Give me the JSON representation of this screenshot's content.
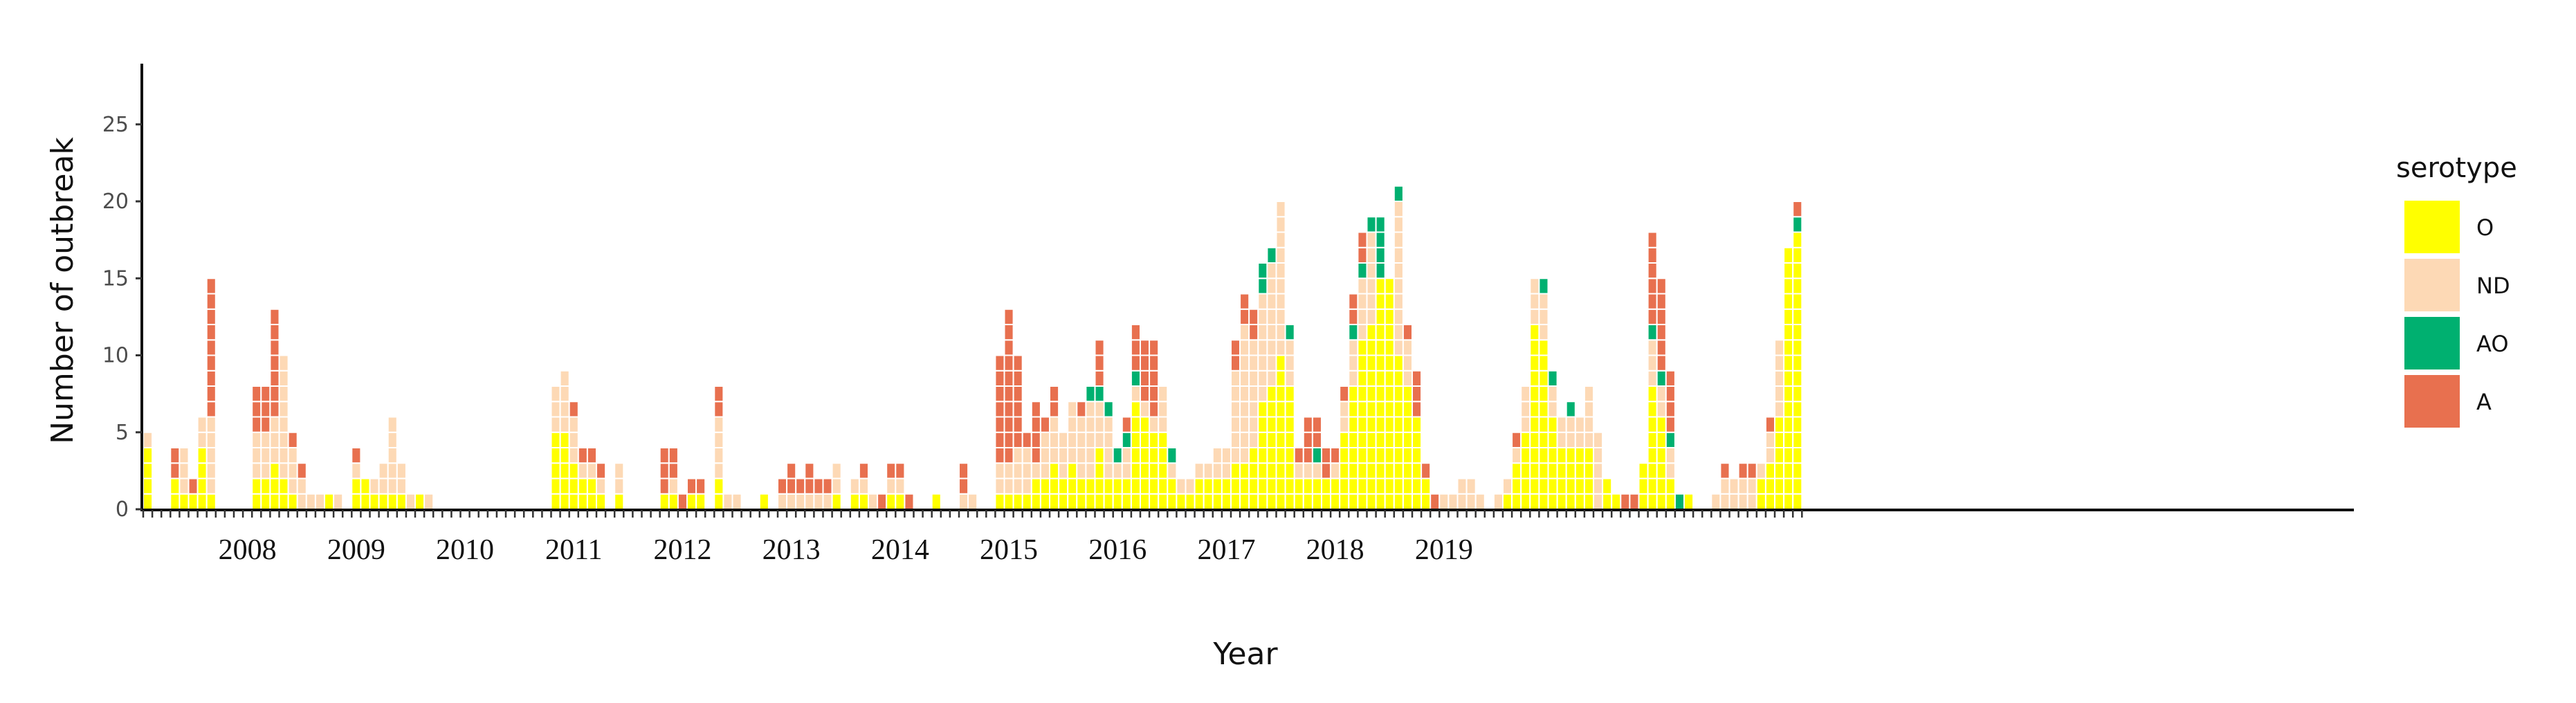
{
  "chart_data": {
    "type": "bar",
    "subtype": "stacked-waffle",
    "title": "",
    "xlabel": "Year",
    "ylabel": "Number of outbreak",
    "ylim": [
      0,
      29
    ],
    "yticks": [
      0,
      5,
      10,
      15,
      20,
      25
    ],
    "year_labels": [
      "2008",
      "2009",
      "2010",
      "2011",
      "2012",
      "2013",
      "2014",
      "2015",
      "2016",
      "2017",
      "2018",
      "2019"
    ],
    "x_start": "2007-08",
    "x_end": "2019-06",
    "grid": false,
    "legend": {
      "title": "serotype",
      "position": "right",
      "items": [
        {
          "key": "O",
          "label": "O",
          "color": "#FFFF00"
        },
        {
          "key": "ND",
          "label": "ND",
          "color": "#FDD9B5"
        },
        {
          "key": "AO",
          "label": "AO",
          "color": "#00B070"
        },
        {
          "key": "A",
          "label": "A",
          "color": "#E8704F"
        }
      ]
    },
    "stack_order": [
      "O",
      "ND",
      "AO",
      "A"
    ],
    "series": [
      {
        "name": "O",
        "values": [
          4,
          0,
          0,
          2,
          1,
          1,
          4,
          1,
          0,
          0,
          0,
          0,
          2,
          2,
          3,
          2,
          1,
          0,
          0,
          0,
          1,
          0,
          0,
          2,
          2,
          1,
          1,
          1,
          1,
          0,
          1,
          0,
          0,
          0,
          0,
          0,
          0,
          0,
          0,
          0,
          0,
          0,
          0,
          0,
          0,
          5,
          5,
          3,
          2,
          2,
          1,
          0,
          1,
          0,
          0,
          0,
          0,
          1,
          1,
          0,
          1,
          1,
          0,
          2,
          0,
          0,
          0,
          0,
          1,
          0,
          0,
          0,
          0,
          0,
          0,
          0,
          1,
          0,
          1,
          1,
          0,
          0,
          1,
          1,
          0,
          0,
          0,
          1,
          0,
          0,
          0,
          0,
          0,
          0,
          1,
          1,
          1,
          1,
          2,
          2,
          3,
          2,
          3,
          2,
          2,
          4,
          2,
          2,
          2,
          7,
          6,
          5,
          5,
          2,
          1,
          1,
          2,
          2,
          2,
          2,
          3,
          3,
          4,
          7,
          8,
          10,
          8,
          2,
          2,
          2,
          2,
          2,
          5,
          8,
          11,
          12,
          15,
          15,
          10,
          8,
          6,
          2,
          0,
          0,
          0,
          0,
          0,
          0,
          0,
          0,
          1,
          3,
          5,
          12,
          11,
          6,
          4,
          4,
          4,
          4,
          0,
          2,
          1,
          0,
          0,
          3,
          8,
          6,
          2,
          0,
          1,
          0,
          0,
          0,
          0,
          0,
          0,
          0,
          2,
          3,
          6,
          17,
          18
        ]
      },
      {
        "name": "ND",
        "values": [
          1,
          0,
          0,
          0,
          3,
          0,
          2,
          5,
          0,
          0,
          0,
          0,
          3,
          3,
          3,
          8,
          3,
          2,
          1,
          1,
          0,
          1,
          0,
          1,
          0,
          1,
          2,
          5,
          2,
          1,
          0,
          1,
          0,
          0,
          0,
          0,
          0,
          0,
          0,
          0,
          0,
          0,
          0,
          0,
          0,
          3,
          4,
          3,
          1,
          1,
          1,
          0,
          2,
          0,
          0,
          0,
          0,
          0,
          1,
          0,
          0,
          0,
          0,
          4,
          1,
          1,
          0,
          0,
          0,
          0,
          1,
          1,
          1,
          1,
          1,
          1,
          2,
          0,
          1,
          1,
          1,
          0,
          1,
          1,
          0,
          0,
          0,
          0,
          0,
          0,
          1,
          1,
          0,
          0,
          2,
          2,
          3,
          3,
          1,
          3,
          3,
          3,
          4,
          4,
          5,
          3,
          4,
          1,
          2,
          1,
          1,
          1,
          3,
          1,
          1,
          1,
          1,
          1,
          2,
          2,
          6,
          9,
          7,
          7,
          8,
          10,
          3,
          1,
          1,
          1,
          0,
          1,
          2,
          3,
          4,
          6,
          0,
          0,
          10,
          3,
          0,
          0,
          0,
          1,
          1,
          2,
          2,
          1,
          0,
          1,
          1,
          1,
          3,
          3,
          3,
          2,
          2,
          2,
          2,
          4,
          5,
          0,
          0,
          0,
          0,
          0,
          3,
          2,
          2,
          0,
          0,
          0,
          0,
          1,
          2,
          2,
          2,
          2,
          1,
          2,
          5,
          0,
          0
        ]
      },
      {
        "name": "AO",
        "values": [
          0,
          0,
          0,
          0,
          0,
          0,
          0,
          0,
          0,
          0,
          0,
          0,
          0,
          0,
          0,
          0,
          0,
          0,
          0,
          0,
          0,
          0,
          0,
          0,
          0,
          0,
          0,
          0,
          0,
          0,
          0,
          0,
          0,
          0,
          0,
          0,
          0,
          0,
          0,
          0,
          0,
          0,
          0,
          0,
          0,
          0,
          0,
          0,
          0,
          0,
          0,
          0,
          0,
          0,
          0,
          0,
          0,
          0,
          0,
          0,
          0,
          0,
          0,
          0,
          0,
          0,
          0,
          0,
          0,
          0,
          0,
          0,
          0,
          0,
          0,
          0,
          0,
          0,
          0,
          0,
          0,
          0,
          0,
          0,
          0,
          0,
          0,
          0,
          0,
          0,
          0,
          0,
          0,
          0,
          0,
          0,
          0,
          0,
          0,
          0,
          0,
          0,
          0,
          0,
          1,
          1,
          1,
          1,
          1,
          1,
          0,
          0,
          0,
          1,
          0,
          0,
          0,
          0,
          0,
          0,
          0,
          0,
          0,
          2,
          1,
          0,
          1,
          0,
          0,
          1,
          0,
          0,
          0,
          1,
          1,
          1,
          4,
          0,
          1,
          0,
          0,
          0,
          0,
          0,
          0,
          0,
          0,
          0,
          0,
          0,
          0,
          0,
          0,
          0,
          1,
          1,
          0,
          1,
          0,
          0,
          0,
          0,
          0,
          0,
          0,
          0,
          1,
          1,
          1,
          1,
          0,
          0,
          0,
          0,
          0,
          0,
          0,
          0,
          0,
          0,
          0,
          0,
          1
        ]
      },
      {
        "name": "A",
        "values": [
          0,
          0,
          0,
          2,
          0,
          1,
          0,
          9,
          0,
          0,
          0,
          0,
          3,
          3,
          7,
          0,
          1,
          1,
          0,
          0,
          0,
          0,
          0,
          1,
          0,
          0,
          0,
          0,
          0,
          0,
          0,
          0,
          0,
          0,
          0,
          0,
          0,
          0,
          0,
          0,
          0,
          0,
          0,
          0,
          0,
          0,
          0,
          1,
          1,
          1,
          1,
          0,
          0,
          0,
          0,
          0,
          0,
          3,
          2,
          1,
          1,
          1,
          0,
          2,
          0,
          0,
          0,
          0,
          0,
          0,
          1,
          2,
          1,
          2,
          1,
          1,
          0,
          0,
          0,
          1,
          0,
          1,
          1,
          1,
          1,
          0,
          0,
          0,
          0,
          0,
          2,
          0,
          0,
          0,
          7,
          10,
          6,
          1,
          4,
          1,
          2,
          0,
          0,
          1,
          0,
          3,
          0,
          0,
          1,
          3,
          4,
          5,
          0,
          0,
          0,
          0,
          0,
          0,
          0,
          0,
          2,
          2,
          2,
          0,
          0,
          0,
          0,
          1,
          3,
          2,
          2,
          1,
          1,
          2,
          2,
          0,
          0,
          0,
          0,
          1,
          3,
          1,
          1,
          0,
          0,
          0,
          0,
          0,
          0,
          0,
          0,
          1,
          0,
          0,
          0,
          0,
          0,
          0,
          0,
          0,
          0,
          0,
          0,
          1,
          1,
          0,
          6,
          6,
          4,
          0,
          0,
          0,
          0,
          0,
          1,
          0,
          1,
          1,
          0,
          1,
          0,
          0,
          1
        ]
      }
    ]
  }
}
